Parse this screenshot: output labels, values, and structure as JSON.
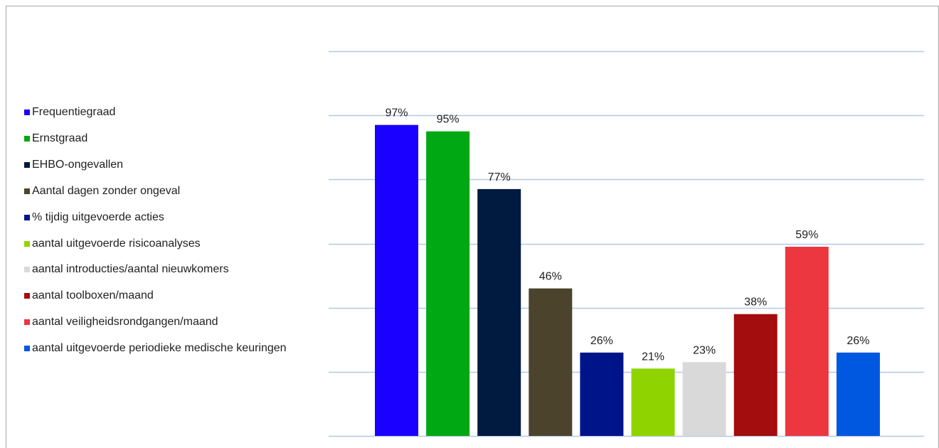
{
  "chart_data": {
    "type": "bar",
    "categories": [
      "Frequentiegraad",
      "Ernstgraad",
      "EHBO-ongevallen",
      "Aantal dagen zonder ongeval",
      "% tijdig uitgevoerde acties",
      "aantal uitgevoerde risicoanalyses",
      "aantal introducties/aantal nieuwkomers",
      "aantal toolboxen/maand",
      "aantal veiligheidsrondgangen/maand",
      "aantal uitgevoerde periodieke medische keuringen"
    ],
    "values": [
      97,
      95,
      77,
      46,
      26,
      21,
      23,
      38,
      59,
      26
    ],
    "data_labels": [
      "97%",
      "95%",
      "77%",
      "46%",
      "26%",
      "21%",
      "23%",
      "38%",
      "59%",
      "26%"
    ],
    "colors": [
      "#1a00ff",
      "#00a814",
      "#001a40",
      "#4b432b",
      "#00148a",
      "#8fd400",
      "#d9d9d9",
      "#a30d0d",
      "#ec3640",
      "#0057e0"
    ],
    "ylim": [
      0,
      120
    ],
    "grid": true,
    "gridline_color": "#b4c7e7",
    "legend_position": "left"
  }
}
